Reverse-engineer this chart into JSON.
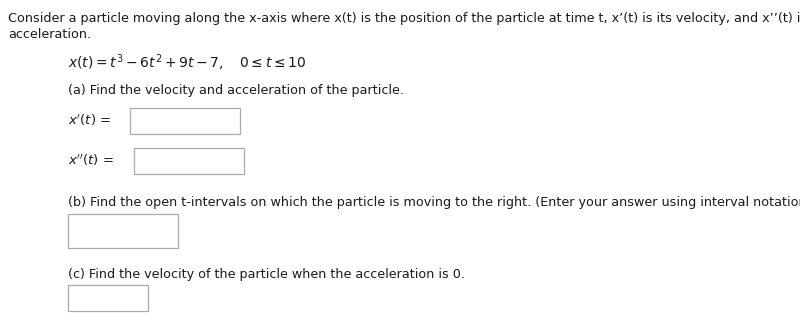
{
  "bg_color": "#ffffff",
  "text_color": "#1a1a1a",
  "box_edge_color": "#aaaaaa",
  "box_face_color": "#ffffff",
  "font_size_header": 9.2,
  "font_size_eq": 10.0,
  "font_size_body": 9.2,
  "font_size_label": 9.5,
  "header_line1": "Consider a particle moving along the x-axis where x(t) is the position of the particle at time t, x’(t) is its velocity, and x’’(t) is its",
  "header_line2": "acceleration.",
  "part_a": "(a) Find the velocity and acceleration of the particle.",
  "part_b": "(b) Find the open t-intervals on which the particle is moving to the right. (Enter your answer using interval notation.)",
  "part_c": "(c) Find the velocity of the particle when the acceleration is 0."
}
